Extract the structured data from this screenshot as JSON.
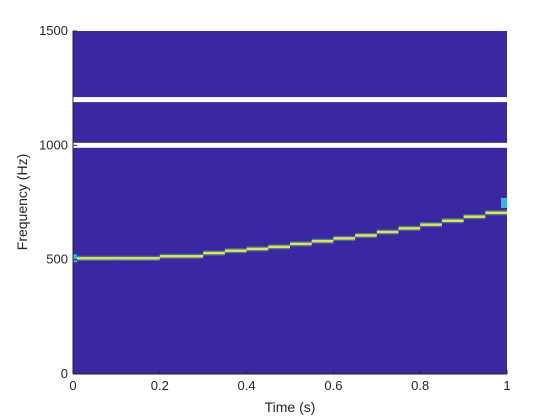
{
  "chart_data": {
    "type": "heatmap",
    "title": "",
    "xlabel": "Time (s)",
    "ylabel": "Frequency (Hz)",
    "xlim": [
      0,
      1
    ],
    "ylim": [
      0,
      1500
    ],
    "x_ticks": [
      0,
      0.2,
      0.4,
      0.6,
      0.8,
      1
    ],
    "x_tick_labels": [
      "0",
      "0.2",
      "0.4",
      "0.6",
      "0.8",
      "1"
    ],
    "y_ticks": [
      0,
      500,
      1000,
      1500
    ],
    "y_tick_labels": [
      "0",
      "500",
      "1000",
      "1500"
    ],
    "grid": false,
    "colors": {
      "background": "#3c27a3",
      "ridge": "#f2e52a",
      "ridge_edge": "#36b6d8",
      "white_line": "#ffffff"
    },
    "white_lines_hz": [
      1000,
      1200
    ],
    "ridge": {
      "t": [
        0.0,
        0.1,
        0.2,
        0.3,
        0.35,
        0.4,
        0.45,
        0.5,
        0.55,
        0.6,
        0.65,
        0.7,
        0.75,
        0.8,
        0.85,
        0.9,
        0.95,
        1.0
      ],
      "f": [
        506,
        506,
        515,
        529,
        539,
        547,
        556,
        569,
        581,
        593,
        606,
        621,
        637,
        653,
        670,
        688,
        705,
        748
      ]
    }
  }
}
